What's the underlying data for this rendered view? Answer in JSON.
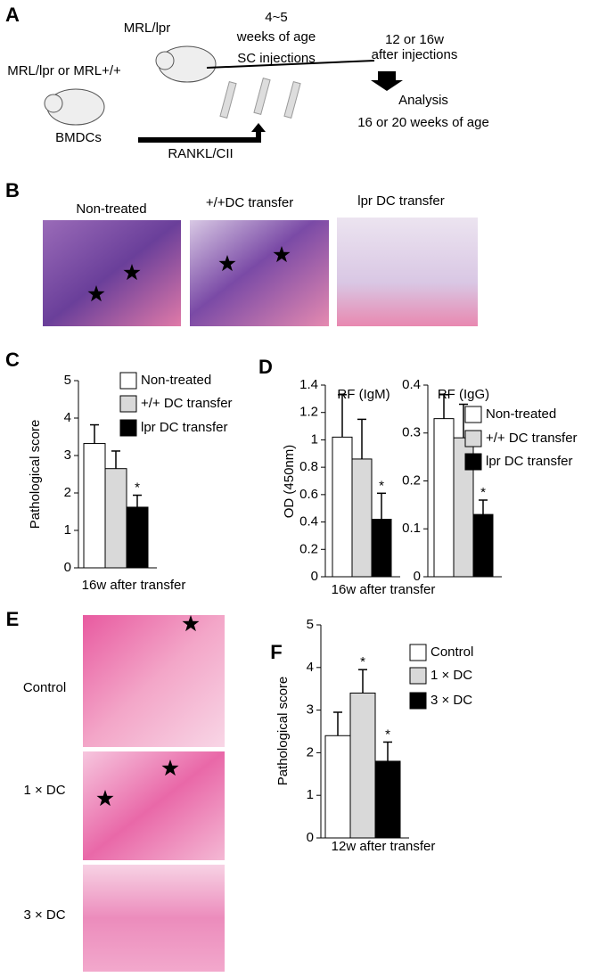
{
  "figure": {
    "panel_labels": [
      "A",
      "B",
      "C",
      "D",
      "E",
      "F"
    ],
    "scheme": {
      "recipient": "MRL/lpr",
      "donor": "MRL/lpr or MRL+/+",
      "cells": "BMDCs",
      "age_line1": "4~5",
      "age_line2": "weeks of age",
      "injection": "SC injections",
      "after_line1": "12 or 16w",
      "after_line2": "after injections",
      "analysis_line1": "Analysis",
      "analysis_line2": "16 or 20 weeks of age",
      "pulse": "RANKL/CII"
    },
    "histology_b": [
      "Non-treated",
      "+/+DC transfer",
      "lpr DC transfer"
    ],
    "histology_e": [
      "Control",
      "1 × DC",
      "3 × DC"
    ]
  },
  "chart_data": [
    {
      "type": "bar",
      "ylabel": "Pathological score",
      "categories": [
        "16w after transfer"
      ],
      "ylim": [
        0,
        5
      ],
      "yticks": [
        0,
        1,
        2,
        3,
        4,
        5
      ],
      "series": [
        {
          "name": "Non-treated",
          "color": "#ffffff",
          "values": [
            3.32
          ],
          "errors": [
            0.5
          ]
        },
        {
          "name": "+/+ DC transfer",
          "color": "#d9d9d9",
          "values": [
            2.65
          ],
          "errors": [
            0.47
          ]
        },
        {
          "name": "lpr DC transfer",
          "color": "#000000",
          "values": [
            1.62
          ],
          "errors": [
            0.32
          ]
        }
      ],
      "significance": [
        null,
        null,
        "*"
      ]
    },
    {
      "type": "bar",
      "title": "RF (IgM)",
      "ylabel": "OD (450nm)",
      "categories": [
        "16w after transfer"
      ],
      "ylim": [
        0,
        1.4
      ],
      "yticks": [
        0,
        0.2,
        0.4,
        0.6,
        0.8,
        1,
        1.2,
        1.4
      ],
      "series": [
        {
          "color": "#ffffff",
          "values": [
            1.02
          ],
          "errors": [
            0.31
          ]
        },
        {
          "color": "#d9d9d9",
          "values": [
            0.86
          ],
          "errors": [
            0.29
          ]
        },
        {
          "color": "#000000",
          "values": [
            0.42
          ],
          "errors": [
            0.19
          ]
        }
      ],
      "significance": [
        null,
        null,
        "*"
      ]
    },
    {
      "type": "bar",
      "title": "RF (IgG)",
      "categories": [
        null
      ],
      "ylim": [
        0,
        0.4
      ],
      "yticks": [
        0,
        0.1,
        0.2,
        0.3,
        0.4
      ],
      "series": [
        {
          "name": "Non-treated",
          "color": "#ffffff",
          "values": [
            0.33
          ],
          "errors": [
            0.05
          ]
        },
        {
          "name": "+/+ DC transfer",
          "color": "#d9d9d9",
          "values": [
            0.29
          ],
          "errors": [
            0.07
          ]
        },
        {
          "name": "lpr  DC transfer",
          "color": "#000000",
          "values": [
            0.13
          ],
          "errors": [
            0.03
          ]
        }
      ],
      "significance": [
        null,
        null,
        "*"
      ]
    },
    {
      "type": "bar",
      "ylabel": "Pathological score",
      "categories": [
        "12w after transfer"
      ],
      "ylim": [
        0,
        5
      ],
      "yticks": [
        0,
        1,
        2,
        3,
        4,
        5
      ],
      "series": [
        {
          "name": "Control",
          "color": "#ffffff",
          "values": [
            2.4
          ],
          "errors": [
            0.55
          ]
        },
        {
          "name": "1 × DC",
          "color": "#d9d9d9",
          "values": [
            3.4
          ],
          "errors": [
            0.55
          ]
        },
        {
          "name": "3 × DC",
          "color": "#000000",
          "values": [
            1.8
          ],
          "errors": [
            0.45
          ]
        }
      ],
      "significance": [
        null,
        "*",
        "*"
      ]
    }
  ]
}
